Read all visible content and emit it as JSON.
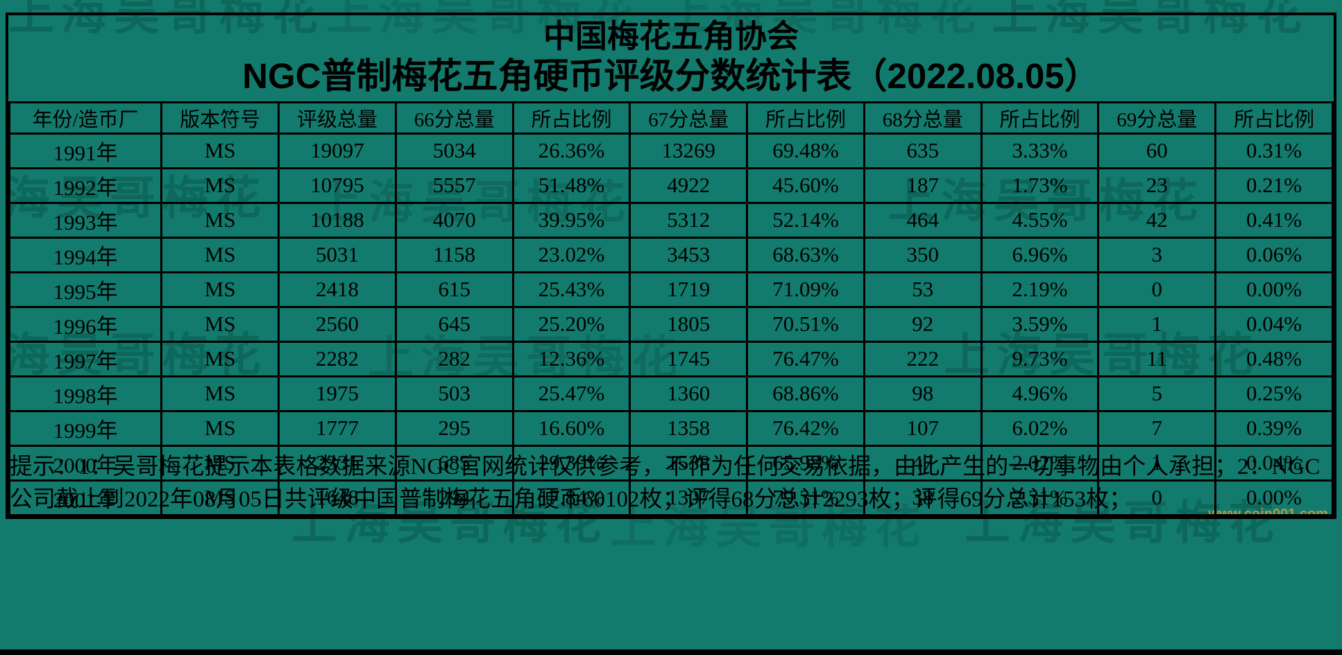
{
  "meta": {
    "background_color": "#137b6d",
    "grid_color": "#000000",
    "watermark_color": "#084f46",
    "site_watermark_color": "#d6a437"
  },
  "header": {
    "org_title": "中国梅花五角协会",
    "table_title": "NGC普制梅花五角硬币评级分数统计表（2022.08.05）"
  },
  "chart_data": {
    "type": "table",
    "title": "NGC普制梅花五角硬币评级分数统计表（2022.08.05）",
    "columns": [
      "年份/造币厂",
      "版本符号",
      "评级总量",
      "66分总量",
      "所占比例",
      "67分总量",
      "所占比例",
      "68分总量",
      "所占比例",
      "69分总量",
      "所占比例"
    ],
    "rows": [
      [
        "1991年",
        "MS",
        "19097",
        "5034",
        "26.36%",
        "13269",
        "69.48%",
        "635",
        "3.33%",
        "60",
        "0.31%"
      ],
      [
        "1992年",
        "MS",
        "10795",
        "5557",
        "51.48%",
        "4922",
        "45.60%",
        "187",
        "1.73%",
        "23",
        "0.21%"
      ],
      [
        "1993年",
        "MS",
        "10188",
        "4070",
        "39.95%",
        "5312",
        "52.14%",
        "464",
        "4.55%",
        "42",
        "0.41%"
      ],
      [
        "1994年",
        "MS",
        "5031",
        "1158",
        "23.02%",
        "3453",
        "68.63%",
        "350",
        "6.96%",
        "3",
        "0.06%"
      ],
      [
        "1995年",
        "MS",
        "2418",
        "615",
        "25.43%",
        "1719",
        "71.09%",
        "53",
        "2.19%",
        "0",
        "0.00%"
      ],
      [
        "1996年",
        "MS",
        "2560",
        "645",
        "25.20%",
        "1805",
        "70.51%",
        "92",
        "3.59%",
        "1",
        "0.04%"
      ],
      [
        "1997年",
        "MS",
        "2282",
        "282",
        "12.36%",
        "1745",
        "76.47%",
        "222",
        "9.73%",
        "11",
        "0.48%"
      ],
      [
        "1998年",
        "MS",
        "1975",
        "503",
        "25.47%",
        "1360",
        "68.86%",
        "98",
        "4.96%",
        "5",
        "0.25%"
      ],
      [
        "1999年",
        "MS",
        "1777",
        "295",
        "16.60%",
        "1358",
        "76.42%",
        "107",
        "6.02%",
        "7",
        "0.39%"
      ],
      [
        "2000年",
        "MS",
        "2331",
        "685",
        "29.39%",
        "1538",
        "65.98%",
        "47",
        "2.02%",
        "1",
        "0.04%"
      ],
      [
        "2001年",
        "MS",
        "1648",
        "294",
        "17.84%",
        "1307",
        "79.31%",
        "38",
        "2.31%",
        "0",
        "0.00%"
      ]
    ]
  },
  "footer": {
    "note": "提示：1：吴哥梅花提示本表格数据来源NGC官网统计仅供参考，不作为任何交易依据，由此产生的一切事物由个人承担；2：NGC公司截止到2022年08月05日共评级中国普制梅花五角硬币60102枚；评得68分总计2293枚；评得69分总计153枚；"
  },
  "watermark": {
    "text": "上海吴哥梅花",
    "site": "www.coin001.com"
  }
}
